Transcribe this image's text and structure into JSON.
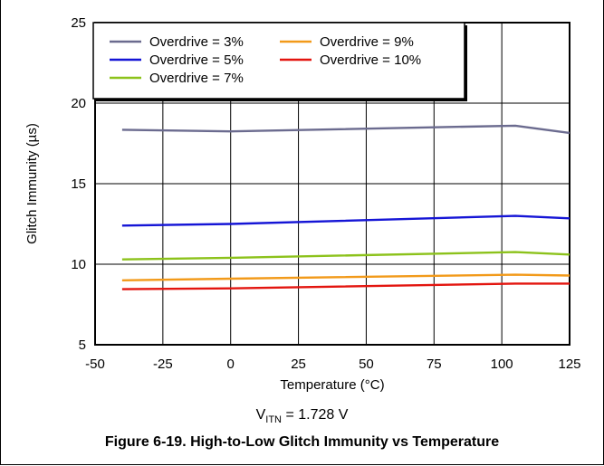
{
  "chart_data": {
    "type": "line",
    "xlabel": "Temperature (°C)",
    "ylabel": "Glitch Immunity (µs)",
    "xlim": [
      -50,
      125
    ],
    "ylim": [
      5,
      25
    ],
    "xticks": [
      "-50",
      "-25",
      "0",
      "25",
      "50",
      "75",
      "100",
      "125"
    ],
    "yticks": [
      "5",
      "10",
      "15",
      "20",
      "25"
    ],
    "grid": true,
    "legend_position": "top-left",
    "x": [
      -40,
      0,
      105,
      125
    ],
    "series": [
      {
        "name": "Overdrive = 3%",
        "color": "#6b6b8f",
        "values": [
          18.35,
          18.25,
          18.6,
          18.15
        ]
      },
      {
        "name": "Overdrive = 5%",
        "color": "#1515d6",
        "values": [
          12.4,
          12.5,
          13.0,
          12.85
        ]
      },
      {
        "name": "Overdrive = 7%",
        "color": "#8cc21b",
        "values": [
          10.3,
          10.4,
          10.75,
          10.6
        ]
      },
      {
        "name": "Overdrive = 9%",
        "color": "#f29a1a",
        "values": [
          9.0,
          9.1,
          9.35,
          9.3
        ]
      },
      {
        "name": "Overdrive = 10%",
        "color": "#e3150f",
        "values": [
          8.45,
          8.5,
          8.8,
          8.8
        ]
      }
    ]
  },
  "condition": {
    "prefix": "V",
    "sub": "ITN",
    "suffix": " = 1.728 V"
  },
  "caption": "Figure 6-19. High-to-Low Glitch Immunity vs Temperature"
}
